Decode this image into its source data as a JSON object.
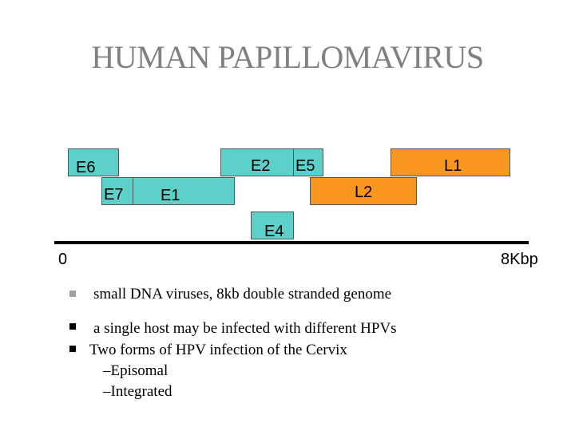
{
  "title": "HUMAN PAPILLOMAVIRUS",
  "genes": {
    "e6": "E6",
    "e7": "E7",
    "e1": "E1",
    "e2": "E2",
    "e5": "E5",
    "e4": "E4",
    "l2": "L2",
    "l1": "L1"
  },
  "colors": {
    "early": "#5bd1c9",
    "late": "#f8961f"
  },
  "axis": {
    "start": "0",
    "end": "8Kbp"
  },
  "bullets": [
    "small DNA viruses, 8kb double stranded genome",
    "a single host may be infected with different HPVs",
    "Two forms of HPV infection of the Cervix"
  ],
  "sub_items": [
    "–Episomal",
    "–Integrated"
  ]
}
